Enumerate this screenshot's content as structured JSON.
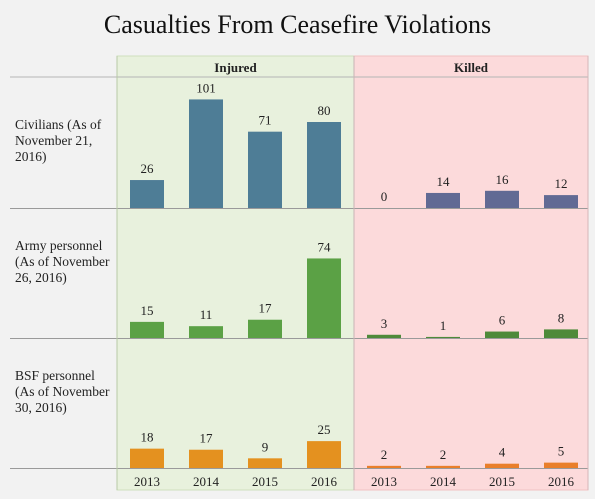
{
  "title": "Casualties From Ceasefire Violations",
  "chart_data": {
    "type": "bar",
    "title": "Casualties From Ceasefire Violations",
    "columns": [
      "Injured",
      "Killed"
    ],
    "categories": [
      "2013",
      "2014",
      "2015",
      "2016"
    ],
    "rows": [
      {
        "label": "Civilians (As of November 21, 2016)",
        "color": "#4e7d96",
        "killed_color": "#616a94",
        "injured": [
          26,
          101,
          71,
          80
        ],
        "killed": [
          0,
          14,
          16,
          12
        ]
      },
      {
        "label": "Army personnel (As of November 26, 2016)",
        "color": "#5ba145",
        "killed_color": "#4e8a3a",
        "injured": [
          15,
          11,
          17,
          74
        ],
        "killed": [
          3,
          1,
          6,
          8
        ]
      },
      {
        "label": "BSF personnel (As of November 30, 2016)",
        "color": "#e4911f",
        "killed_color": "#e97f2b",
        "injured": [
          18,
          17,
          9,
          25
        ],
        "killed": [
          2,
          2,
          4,
          5
        ]
      }
    ],
    "panel_colors": {
      "Injured": "#e8f1dd",
      "Killed": "#fcdadb"
    }
  }
}
